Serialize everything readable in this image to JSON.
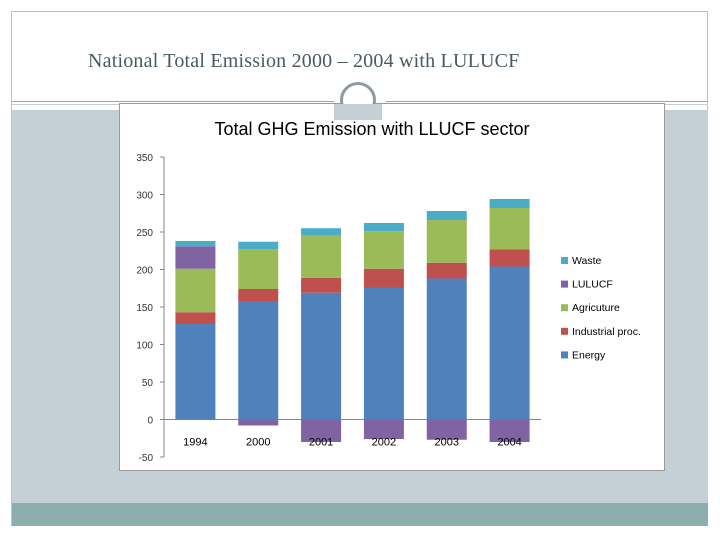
{
  "slide": {
    "title": "National Total Emission 2000 – 2004  with LULUCF"
  },
  "colors": {
    "Energy": "#4f81bd",
    "Industrial proc.": "#c0504d",
    "Agricuture": "#9bbb59",
    "LULUCF": "#8064a2",
    "Waste": "#4bacc6"
  },
  "chart_data": {
    "type": "bar",
    "stacked": true,
    "title": "Total GHG Emission with LLUCF sector",
    "xlabel": "",
    "ylabel": "",
    "ylim": [
      -50,
      350
    ],
    "yticks": [
      -50,
      0,
      50,
      100,
      150,
      200,
      250,
      300,
      350
    ],
    "categories": [
      "1994",
      "2000",
      "2001",
      "2002",
      "2003",
      "2004"
    ],
    "legend_position": "right",
    "series": [
      {
        "name": "Energy",
        "values": [
          128,
          158,
          169,
          176,
          188,
          204
        ]
      },
      {
        "name": "Industrial proc.",
        "values": [
          15,
          16,
          20,
          25,
          21,
          23
        ]
      },
      {
        "name": "Agricuture",
        "values": [
          58,
          53,
          56,
          50,
          57,
          55
        ]
      },
      {
        "name": "LULUCF",
        "values": [
          30,
          -8,
          -30,
          -26,
          -27,
          -30
        ]
      },
      {
        "name": "Waste",
        "values": [
          7,
          10,
          10,
          11,
          12,
          12
        ]
      }
    ],
    "legend_order": [
      "Waste",
      "LULUCF",
      "Agricuture",
      "Industrial proc.",
      "Energy"
    ]
  }
}
